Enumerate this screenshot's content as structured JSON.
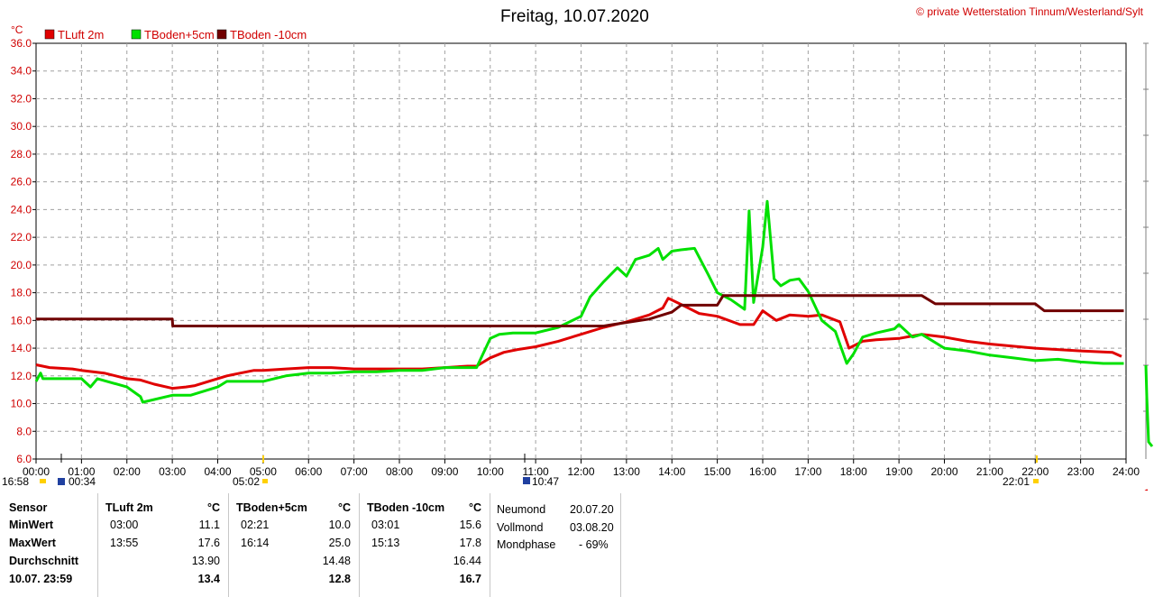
{
  "header": {
    "title": "Freitag, 10.07.2020",
    "copyright": "© private Wetterstation Tinnum/Westerland/Sylt"
  },
  "colors": {
    "tluft": "#e00000",
    "tboden5": "#00e000",
    "tboden10": "#700000",
    "grid": "#a0a0a0",
    "axis_text": "#d00000"
  },
  "sun": {
    "moonrise": "16:58",
    "sunrise_marker": "00:34",
    "dawn": "05:02",
    "noon": "10:47",
    "sunset": "22:01"
  },
  "chart_data": {
    "type": "line",
    "yunit": "°C",
    "ylim": [
      6.0,
      36.0
    ],
    "yticks": [
      "6.0",
      "8.0",
      "10.0",
      "12.0",
      "14.0",
      "16.0",
      "18.0",
      "20.0",
      "22.0",
      "24.0",
      "26.0",
      "28.0",
      "30.0",
      "32.0",
      "34.0",
      "36.0"
    ],
    "xlim": [
      0,
      24
    ],
    "xticks": [
      "00:00",
      "01:00",
      "02:00",
      "03:00",
      "04:00",
      "05:00",
      "06:00",
      "07:00",
      "08:00",
      "09:00",
      "10:00",
      "11:00",
      "12:00",
      "13:00",
      "14:00",
      "15:00",
      "16:00",
      "17:00",
      "18:00",
      "19:00",
      "20:00",
      "21:00",
      "22:00",
      "23:00",
      "24:00"
    ],
    "grid": true,
    "legend_position": "top-left",
    "series": [
      {
        "name": "TLuft 2m",
        "color": "#e00000",
        "x": [
          0,
          0.3,
          0.8,
          1.0,
          1.5,
          2.0,
          2.3,
          2.6,
          3.0,
          3.3,
          3.5,
          3.8,
          4.2,
          4.5,
          4.8,
          5.0,
          5.5,
          6.0,
          6.5,
          7.0,
          7.5,
          8.0,
          8.5,
          9.0,
          9.5,
          9.7,
          10.0,
          10.3,
          10.6,
          11.0,
          11.5,
          12.0,
          12.5,
          13.0,
          13.5,
          13.8,
          13.92,
          14.3,
          14.6,
          15.0,
          15.5,
          15.8,
          16.0,
          16.3,
          16.6,
          17.0,
          17.3,
          17.7,
          17.9,
          18.2,
          18.5,
          19.0,
          19.5,
          20.0,
          20.5,
          21.0,
          22.0,
          23.0,
          23.7,
          23.9
        ],
        "y": [
          12.8,
          12.6,
          12.5,
          12.4,
          12.2,
          11.8,
          11.7,
          11.4,
          11.1,
          11.2,
          11.3,
          11.6,
          12.0,
          12.2,
          12.4,
          12.4,
          12.5,
          12.6,
          12.6,
          12.5,
          12.5,
          12.5,
          12.5,
          12.6,
          12.7,
          12.7,
          13.3,
          13.7,
          13.9,
          14.1,
          14.5,
          15.0,
          15.5,
          15.9,
          16.4,
          16.9,
          17.6,
          17.0,
          16.5,
          16.3,
          15.7,
          15.7,
          16.7,
          16.0,
          16.4,
          16.3,
          16.4,
          15.9,
          14.0,
          14.5,
          14.6,
          14.7,
          15.0,
          14.8,
          14.5,
          14.3,
          14.0,
          13.8,
          13.7,
          13.4
        ]
      },
      {
        "name": "TBoden+5cm",
        "color": "#00e000",
        "x": [
          0,
          0.1,
          0.15,
          1.0,
          1.2,
          1.35,
          2.0,
          2.3,
          2.35,
          3.0,
          3.4,
          4.0,
          4.2,
          5.0,
          5.5,
          6.0,
          6.5,
          7.0,
          7.5,
          8.0,
          8.5,
          9.0,
          9.3,
          9.5,
          9.7,
          10.0,
          10.2,
          10.5,
          11.0,
          11.5,
          12.0,
          12.2,
          12.5,
          12.8,
          13.0,
          13.2,
          13.5,
          13.7,
          13.8,
          14.0,
          14.2,
          14.5,
          14.8,
          15.0,
          15.3,
          15.6,
          15.7,
          15.8,
          16.0,
          16.1,
          16.25,
          16.4,
          16.6,
          16.8,
          17.0,
          17.3,
          17.6,
          17.85,
          18.0,
          18.2,
          18.5,
          18.9,
          19.0,
          19.3,
          19.5,
          19.7,
          20.0,
          20.5,
          21.0,
          21.5,
          22.0,
          22.5,
          23.0,
          23.5,
          23.95
        ],
        "y": [
          11.6,
          12.2,
          11.8,
          11.8,
          11.2,
          11.8,
          11.2,
          10.5,
          10.1,
          10.6,
          10.6,
          11.2,
          11.6,
          11.6,
          12.0,
          12.2,
          12.2,
          12.3,
          12.3,
          12.4,
          12.4,
          12.6,
          12.6,
          12.6,
          12.6,
          14.7,
          15.0,
          15.1,
          15.1,
          15.5,
          16.3,
          17.7,
          18.8,
          19.8,
          19.2,
          20.4,
          20.7,
          21.2,
          20.4,
          21.0,
          21.1,
          21.2,
          19.3,
          18.0,
          17.5,
          16.8,
          23.9,
          17.3,
          21.3,
          24.6,
          19.0,
          18.5,
          18.9,
          19.0,
          18.1,
          16.0,
          15.2,
          12.9,
          13.6,
          14.8,
          15.1,
          15.4,
          15.7,
          14.8,
          15.0,
          14.6,
          14.0,
          13.8,
          13.5,
          13.3,
          13.1,
          13.2,
          13.0,
          12.9,
          12.9
        ]
      },
      {
        "name": "TBoden -10cm",
        "color": "#700000",
        "x": [
          0,
          3.0,
          3.01,
          12.0,
          12.5,
          12.7,
          13.5,
          14.0,
          14.2,
          15.0,
          15.13,
          17.5,
          19.5,
          19.8,
          20.0,
          22.0,
          22.2,
          23.95
        ],
        "y": [
          16.1,
          16.1,
          15.6,
          15.6,
          15.6,
          15.7,
          16.1,
          16.6,
          17.1,
          17.1,
          17.8,
          17.8,
          17.8,
          17.2,
          17.2,
          17.2,
          16.7,
          16.7
        ]
      }
    ]
  },
  "stats": {
    "headers": [
      "Sensor",
      "TLuft 2m",
      "°C",
      "TBoden+5cm",
      "°C",
      "TBoden -10cm",
      "°C"
    ],
    "rows": [
      {
        "label": "MinWert",
        "c1t": "03:00",
        "c1v": "11.1",
        "c2t": "02:21",
        "c2v": "10.0",
        "c3t": "03:01",
        "c3v": "15.6"
      },
      {
        "label": "MaxWert",
        "c1t": "13:55",
        "c1v": "17.6",
        "c2t": "16:14",
        "c2v": "25.0",
        "c3t": "15:13",
        "c3v": "17.8"
      },
      {
        "label": "Durchschnitt",
        "c1t": "",
        "c1v": "13.90",
        "c2t": "",
        "c2v": "14.48",
        "c3t": "",
        "c3v": "16.44"
      },
      {
        "label": "10.07. 23:59",
        "c1t": "",
        "c1v": "13.4",
        "c2t": "",
        "c2v": "12.8",
        "c3t": "",
        "c3v": "16.7"
      }
    ],
    "moon": [
      {
        "label": "Neumond",
        "value": "20.07.20"
      },
      {
        "label": "Vollmond",
        "value": "03.08.20"
      },
      {
        "label": "Mondphase",
        "value": "- 69%"
      }
    ]
  }
}
